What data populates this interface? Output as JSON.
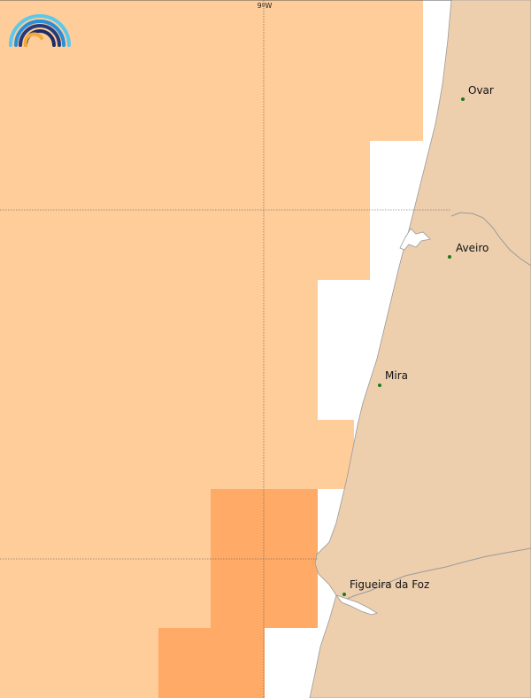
{
  "map": {
    "grid": {
      "longitude_label": "9ºW"
    },
    "cities": [
      {
        "name": "Ovar"
      },
      {
        "name": "Aveiro"
      },
      {
        "name": "Mira"
      },
      {
        "name": "Figueira da Foz"
      }
    ],
    "colors": {
      "land": "#edcfae",
      "sea_light": "#ffcd99",
      "sea_dark": "#ffaa66",
      "no_data": "#ffffff",
      "coast": "#9a9a9a",
      "city_dot": "#1a7a1a",
      "gridline": "#555555"
    },
    "logo": {
      "name": "rainbow-logo-icon"
    }
  }
}
